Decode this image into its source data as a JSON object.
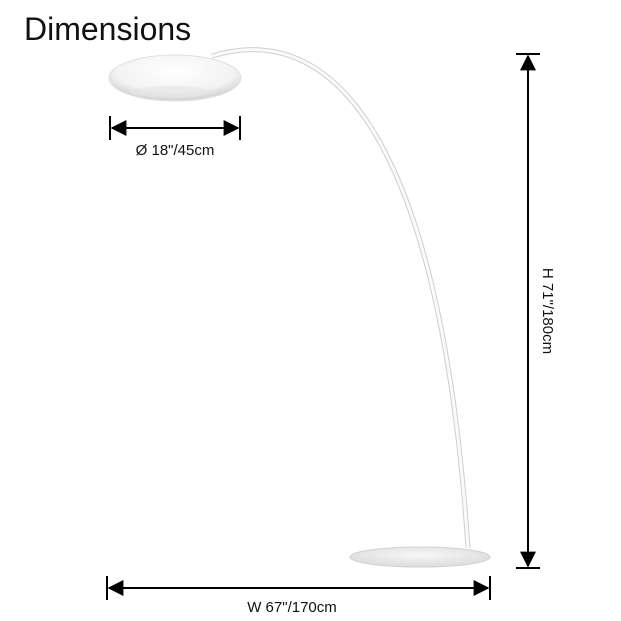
{
  "title": "Dimensions",
  "dimensions": {
    "diameter": "Ø 18\"/45cm",
    "height": "H 71\"/180cm",
    "width": "W 67\"/170cm"
  }
}
